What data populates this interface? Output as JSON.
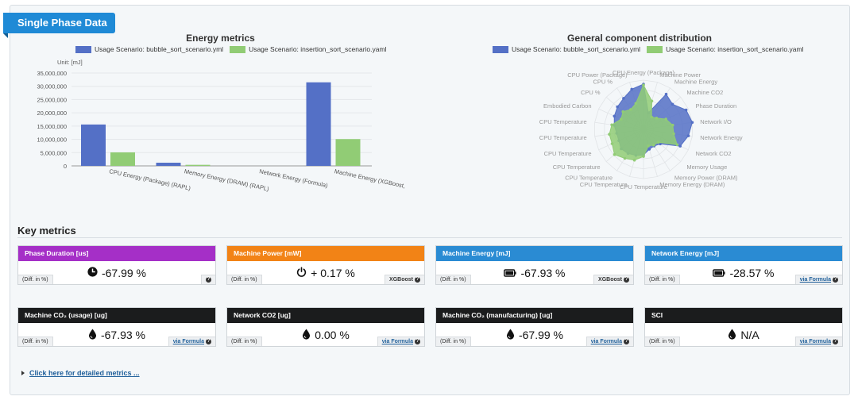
{
  "section": {
    "title": "Single Phase Data"
  },
  "energy_chart": {
    "chart_data": {
      "type": "bar",
      "title": "Energy metrics",
      "unit_label": "Unit: [mJ]",
      "categories": [
        "CPU Energy (Package) (RAPL)",
        "Memory Energy (DRAM) (RAPL)",
        "Network Energy (Formula)",
        "Machine Energy (XGBoost,"
      ],
      "series": [
        {
          "name": "Usage Scenario: bubble_sort_scenario.yml",
          "color": "#5470c6",
          "values": [
            15600000,
            1200000,
            0,
            31500000
          ]
        },
        {
          "name": "Usage Scenario: insertion_sort_scenario.yaml",
          "color": "#91cc75",
          "values": [
            5100000,
            400000,
            0,
            10100000
          ]
        }
      ],
      "ylim": [
        0,
        35000000
      ],
      "yticks": [
        "0",
        "5,000,000",
        "10,000,000",
        "15,000,000",
        "20,000,000",
        "25,000,000",
        "30,000,000",
        "35,000,000"
      ],
      "legend_position": "top"
    }
  },
  "radar_chart": {
    "chart_data": {
      "type": "radar",
      "title": "General component distribution",
      "series": [
        {
          "name": "Usage Scenario: bubble_sort_scenario.yml",
          "color": "#5470c6"
        },
        {
          "name": "Usage Scenario: insertion_sort_scenario.yaml",
          "color": "#91cc75"
        }
      ],
      "indicators": [
        "CPU Energy (Package)",
        "Machine Power",
        "Machine Energy",
        "Machine CO2",
        "Phase Duration",
        "Network I/O",
        "Network Energy",
        "Network CO2",
        "Memory Usage",
        "Memory Power (DRAM)",
        "Memory Energy (DRAM)",
        "CPU Temperature",
        "CPU Temperature",
        "CPU Temperature",
        "CPU Temperature",
        "CPU Temperature",
        "CPU Temperature",
        "CPU Temperature",
        "Embodied Carbon",
        "CPU %",
        "CPU %",
        "CPU Power (Package)"
      ],
      "blue_values": [
        0.92,
        0.35,
        0.85,
        0.78,
        0.95,
        1.0,
        0.92,
        0.82,
        0.45,
        0.4,
        0.42,
        0.52,
        0.55,
        0.58,
        0.6,
        0.55,
        0.55,
        0.6,
        0.65,
        0.7,
        0.75,
        0.85
      ],
      "green_values": [
        0.9,
        0.6,
        0.3,
        0.35,
        0.5,
        0.6,
        0.62,
        0.75,
        0.4,
        0.38,
        0.35,
        0.55,
        0.65,
        0.7,
        0.78,
        0.7,
        0.7,
        0.65,
        0.5,
        0.55,
        0.48,
        0.55
      ],
      "legend_position": "top"
    }
  },
  "key_metrics": {
    "title": "Key metrics",
    "diff_label": "(Diff. in %)",
    "cards": [
      {
        "label": "Phase Duration [us]",
        "value": "-67.99 %",
        "icon": "clock-icon",
        "source": "",
        "link": false,
        "color": "purple"
      },
      {
        "label": "Machine Power [mW]",
        "value": "+ 0.17 %",
        "icon": "power-icon",
        "source": "XGBoost",
        "link": false,
        "color": "orange"
      },
      {
        "label": "Machine Energy [mJ]",
        "value": "-67.93 %",
        "icon": "battery-icon",
        "source": "XGBoost",
        "link": false,
        "color": "blue"
      },
      {
        "label": "Network Energy [mJ]",
        "value": "-28.57 %",
        "icon": "battery-icon",
        "source": "via Formula",
        "link": true,
        "color": "blue"
      },
      {
        "label": "Machine CO₂ (usage) [ug]",
        "value": "-67.93 %",
        "icon": "drop-icon",
        "source": "via Formula",
        "link": true,
        "color": "black"
      },
      {
        "label": "Network CO2 [ug]",
        "value": "0.00 %",
        "icon": "drop-icon",
        "source": "via Formula",
        "link": true,
        "color": "black"
      },
      {
        "label": "Machine CO₂ (manufacturing) [ug]",
        "value": "-67.99 %",
        "icon": "drop-icon",
        "source": "via Formula",
        "link": true,
        "color": "black"
      },
      {
        "label": "SCI",
        "value": "N/A",
        "icon": "drop-icon",
        "source": "via Formula",
        "link": true,
        "color": "black"
      }
    ]
  },
  "details_link": "Click here for detailed metrics ..."
}
